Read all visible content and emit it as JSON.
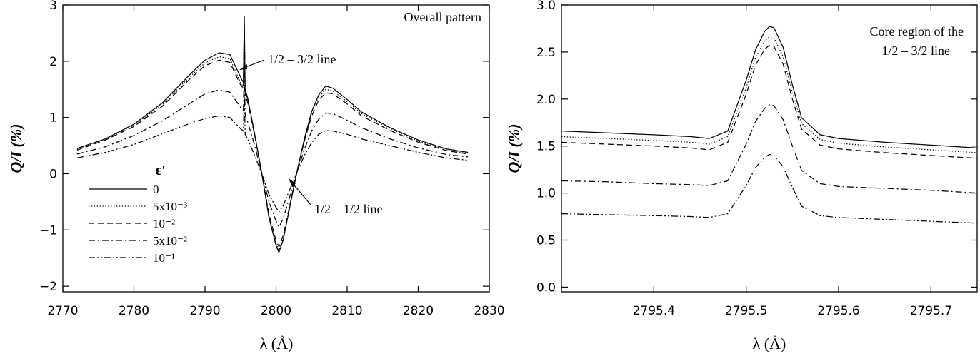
{
  "chart_data": [
    {
      "type": "line",
      "annotation_title": "Overall pattern",
      "xlabel": "λ (Å)",
      "ylabel": "Q/I (%)",
      "xlim": [
        2770,
        2830
      ],
      "ylim": [
        -2.1,
        3.0
      ],
      "xticks": [
        2770,
        2780,
        2790,
        2800,
        2810,
        2820,
        2830
      ],
      "yticks": [
        -2,
        -1,
        0,
        1,
        2,
        3
      ],
      "ytick_labels": [
        "−2",
        "−1",
        "0",
        "1",
        "2",
        "3"
      ],
      "legend_title": "ε′",
      "legend_position": "left-center",
      "grid": false,
      "annotations": [
        {
          "text": "1/2 – 3/2 line",
          "points_to_x": 2795.5,
          "points_to_y": 2.0
        },
        {
          "text": "1/2 – 1/2 line",
          "points_to_x": 2803.0,
          "points_to_y": 0.0
        }
      ],
      "series": [
        {
          "name": "0",
          "dash": "solid",
          "x": [
            2772,
            2776,
            2780,
            2784,
            2788,
            2790,
            2792,
            2793.5,
            2795.0,
            2795.4,
            2795.53,
            2795.65,
            2796,
            2797,
            2798,
            2799,
            2800,
            2800.4,
            2801,
            2802,
            2803,
            2804,
            2805,
            2806,
            2807,
            2808,
            2810,
            2812,
            2816,
            2820,
            2824,
            2827
          ],
          "y": [
            0.45,
            0.62,
            0.88,
            1.26,
            1.78,
            2.02,
            2.15,
            2.12,
            1.72,
            1.62,
            2.8,
            1.5,
            1.35,
            0.7,
            0.0,
            -0.78,
            -1.28,
            -1.4,
            -1.18,
            -0.55,
            0.07,
            0.63,
            1.1,
            1.4,
            1.56,
            1.52,
            1.32,
            1.1,
            0.82,
            0.6,
            0.44,
            0.38
          ]
        },
        {
          "name": "5x10⁻³",
          "dash": "dotted",
          "x": [
            2772,
            2776,
            2780,
            2784,
            2788,
            2790,
            2792,
            2793.5,
            2795.0,
            2795.4,
            2795.53,
            2795.65,
            2796,
            2797,
            2798,
            2799,
            2800,
            2800.4,
            2801,
            2802,
            2803,
            2804,
            2805,
            2806,
            2807,
            2808,
            2810,
            2812,
            2816,
            2820,
            2824,
            2827
          ],
          "y": [
            0.44,
            0.61,
            0.86,
            1.23,
            1.74,
            1.97,
            2.08,
            2.05,
            1.62,
            1.55,
            2.7,
            1.45,
            1.3,
            0.7,
            0.0,
            -0.75,
            -1.24,
            -1.36,
            -1.15,
            -0.54,
            0.07,
            0.61,
            1.06,
            1.36,
            1.5,
            1.47,
            1.28,
            1.07,
            0.8,
            0.58,
            0.42,
            0.36
          ]
        },
        {
          "name": "10⁻²",
          "dash": "dashed",
          "x": [
            2772,
            2776,
            2780,
            2784,
            2788,
            2790,
            2792,
            2793.5,
            2795.0,
            2795.4,
            2795.53,
            2795.65,
            2796,
            2797,
            2798,
            2799,
            2800,
            2800.4,
            2801,
            2802,
            2803,
            2804,
            2805,
            2806,
            2807,
            2808,
            2810,
            2812,
            2816,
            2820,
            2824,
            2827
          ],
          "y": [
            0.42,
            0.6,
            0.84,
            1.2,
            1.7,
            1.92,
            2.02,
            1.98,
            1.58,
            1.52,
            2.6,
            1.4,
            1.27,
            0.68,
            0.0,
            -0.72,
            -1.19,
            -1.3,
            -1.1,
            -0.52,
            0.07,
            0.59,
            1.02,
            1.31,
            1.44,
            1.42,
            1.24,
            1.03,
            0.77,
            0.56,
            0.41,
            0.35
          ]
        },
        {
          "name": "5x10⁻²",
          "dash": "dashdot",
          "x": [
            2772,
            2776,
            2780,
            2784,
            2788,
            2790,
            2792,
            2793.5,
            2795.0,
            2795.4,
            2795.53,
            2795.65,
            2796,
            2797,
            2798,
            2799,
            2800,
            2800.4,
            2801,
            2802,
            2803,
            2804,
            2805,
            2806,
            2807,
            2808,
            2810,
            2812,
            2816,
            2820,
            2824,
            2827
          ],
          "y": [
            0.35,
            0.48,
            0.68,
            0.94,
            1.26,
            1.42,
            1.49,
            1.45,
            1.18,
            1.13,
            1.95,
            1.05,
            0.92,
            0.5,
            0.0,
            -0.5,
            -0.84,
            -0.95,
            -0.8,
            -0.38,
            0.05,
            0.44,
            0.76,
            0.97,
            1.08,
            1.07,
            0.95,
            0.82,
            0.62,
            0.46,
            0.34,
            0.3
          ]
        },
        {
          "name": "10⁻¹",
          "dash": "dashdotdot",
          "x": [
            2772,
            2776,
            2780,
            2784,
            2788,
            2790,
            2792,
            2793.5,
            2795.0,
            2795.4,
            2795.53,
            2795.65,
            2796,
            2797,
            2798,
            2799,
            2800,
            2800.4,
            2801,
            2802,
            2803,
            2804,
            2805,
            2806,
            2807,
            2808,
            2810,
            2812,
            2816,
            2820,
            2824,
            2827
          ],
          "y": [
            0.28,
            0.38,
            0.52,
            0.71,
            0.9,
            0.98,
            1.03,
            1.0,
            0.8,
            0.76,
            1.4,
            0.7,
            0.62,
            0.32,
            0.0,
            -0.37,
            -0.6,
            -0.68,
            -0.57,
            -0.26,
            0.04,
            0.33,
            0.55,
            0.7,
            0.77,
            0.76,
            0.7,
            0.62,
            0.5,
            0.38,
            0.28,
            0.24
          ]
        }
      ]
    },
    {
      "type": "line",
      "annotation_title_line1": "Core region of the",
      "annotation_title_line2": "1/2 – 3/2 line",
      "xlabel": "λ (Å)",
      "ylabel": "Q/I (%)",
      "xlim": [
        2795.3,
        2795.75
      ],
      "ylim": [
        -0.05,
        3.0
      ],
      "xticks": [
        2795.4,
        2795.5,
        2795.6,
        2795.7
      ],
      "yticks": [
        0.0,
        0.5,
        1.0,
        1.5,
        2.0,
        2.5,
        3.0
      ],
      "ytick_labels": [
        "0.0",
        "0.5",
        "1.0",
        "1.5",
        "2.0",
        "2.5",
        "3.0"
      ],
      "grid": false,
      "series": [
        {
          "name": "0",
          "dash": "solid",
          "x": [
            2795.3,
            2795.35,
            2795.4,
            2795.44,
            2795.46,
            2795.48,
            2795.5,
            2795.51,
            2795.52,
            2795.525,
            2795.53,
            2795.54,
            2795.55,
            2795.56,
            2795.58,
            2795.6,
            2795.65,
            2795.7,
            2795.75
          ],
          "y": [
            1.66,
            1.64,
            1.62,
            1.6,
            1.58,
            1.66,
            2.2,
            2.52,
            2.72,
            2.77,
            2.76,
            2.55,
            2.15,
            1.8,
            1.62,
            1.58,
            1.54,
            1.51,
            1.48
          ]
        },
        {
          "name": "5x10⁻³",
          "dash": "dotted",
          "x": [
            2795.3,
            2795.35,
            2795.4,
            2795.44,
            2795.46,
            2795.48,
            2795.5,
            2795.51,
            2795.52,
            2795.525,
            2795.53,
            2795.54,
            2795.55,
            2795.56,
            2795.58,
            2795.6,
            2795.65,
            2795.7,
            2795.75
          ],
          "y": [
            1.6,
            1.58,
            1.56,
            1.54,
            1.52,
            1.6,
            2.12,
            2.44,
            2.62,
            2.66,
            2.65,
            2.45,
            2.07,
            1.74,
            1.57,
            1.53,
            1.49,
            1.46,
            1.43
          ]
        },
        {
          "name": "10⁻²",
          "dash": "dashed",
          "x": [
            2795.3,
            2795.35,
            2795.4,
            2795.44,
            2795.46,
            2795.48,
            2795.5,
            2795.51,
            2795.52,
            2795.525,
            2795.53,
            2795.54,
            2795.55,
            2795.56,
            2795.58,
            2795.6,
            2795.65,
            2795.7,
            2795.75
          ],
          "y": [
            1.54,
            1.52,
            1.5,
            1.48,
            1.46,
            1.54,
            2.05,
            2.36,
            2.53,
            2.57,
            2.56,
            2.37,
            2.0,
            1.68,
            1.51,
            1.47,
            1.43,
            1.4,
            1.37
          ]
        },
        {
          "name": "5x10⁻²",
          "dash": "dashdot",
          "x": [
            2795.3,
            2795.35,
            2795.4,
            2795.44,
            2795.46,
            2795.48,
            2795.5,
            2795.51,
            2795.52,
            2795.525,
            2795.53,
            2795.54,
            2795.55,
            2795.56,
            2795.58,
            2795.6,
            2795.65,
            2795.7,
            2795.75
          ],
          "y": [
            1.13,
            1.12,
            1.1,
            1.09,
            1.08,
            1.13,
            1.52,
            1.76,
            1.9,
            1.94,
            1.93,
            1.78,
            1.5,
            1.24,
            1.1,
            1.07,
            1.05,
            1.03,
            1.0
          ]
        },
        {
          "name": "10⁻¹",
          "dash": "dashdotdot",
          "x": [
            2795.3,
            2795.35,
            2795.4,
            2795.44,
            2795.46,
            2795.48,
            2795.5,
            2795.51,
            2795.52,
            2795.525,
            2795.53,
            2795.54,
            2795.55,
            2795.56,
            2795.58,
            2795.6,
            2795.65,
            2795.7,
            2795.75
          ],
          "y": [
            0.78,
            0.77,
            0.76,
            0.75,
            0.74,
            0.78,
            1.08,
            1.27,
            1.38,
            1.41,
            1.4,
            1.28,
            1.06,
            0.86,
            0.76,
            0.74,
            0.72,
            0.7,
            0.68
          ]
        }
      ]
    }
  ]
}
